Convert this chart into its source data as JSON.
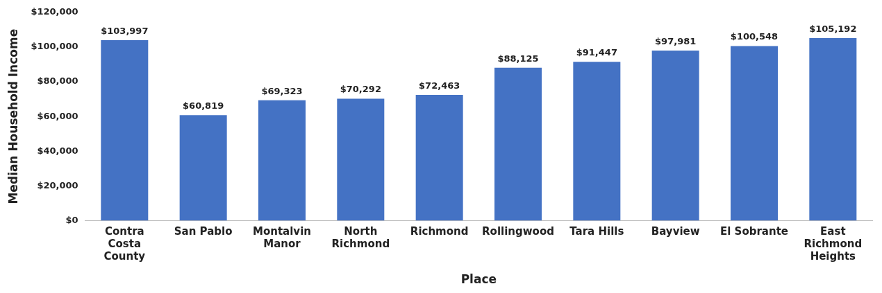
{
  "chart_data": {
    "type": "bar",
    "xlabel": "Place",
    "ylabel": "Median Household Income",
    "categories": [
      "Contra\nCosta\nCounty",
      "San Pablo",
      "Montalvin\nManor",
      "North\nRichmond",
      "Richmond",
      "Rollingwood",
      "Tara Hills",
      "Bayview",
      "El Sobrante",
      "East\nRichmond\nHeights"
    ],
    "values": [
      103997,
      60819,
      69323,
      70292,
      72463,
      88125,
      91447,
      97981,
      100548,
      105192
    ],
    "value_labels": [
      "$103,997",
      "$60,819",
      "$69,323",
      "$70,292",
      "$72,463",
      "$88,125",
      "$91,447",
      "$97,981",
      "$100,548",
      "$105,192"
    ],
    "color": "#4472c4",
    "ylim": [
      0,
      120000
    ],
    "yticks": [
      {
        "value": 0,
        "label": "$0"
      },
      {
        "value": 20000,
        "label": "$20,000"
      },
      {
        "value": 40000,
        "label": "$40,000"
      },
      {
        "value": 60000,
        "label": "$60,000"
      },
      {
        "value": 80000,
        "label": "$80,000"
      },
      {
        "value": 100000,
        "label": "$100,000"
      },
      {
        "value": 120000,
        "label": "$120,000"
      }
    ],
    "grid": false,
    "legend": false
  }
}
